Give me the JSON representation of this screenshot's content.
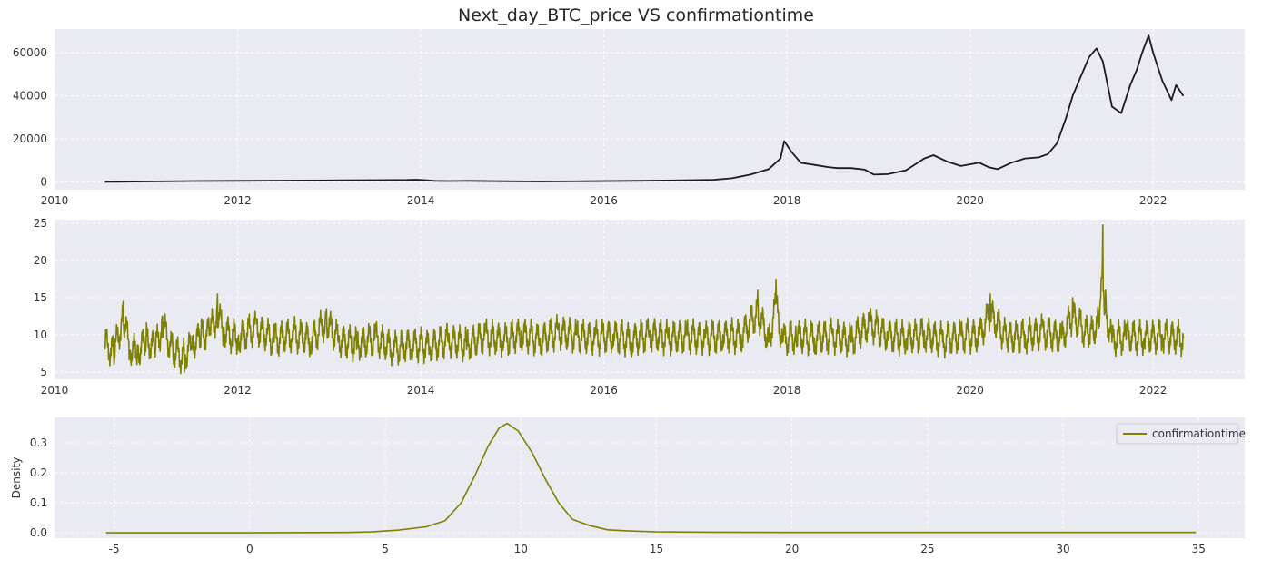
{
  "title": "Next_day_BTC_price VS confirmationtime",
  "colors": {
    "plot_bg": "#eaeaf2",
    "grid": "#ffffff",
    "price": "#1a1a1a",
    "confirmation": "#808000"
  },
  "chart_data": [
    {
      "type": "line",
      "name": "price-chart",
      "title": "Next_day_BTC_price VS confirmationtime",
      "xlabel": "",
      "ylabel": "",
      "xlim": [
        2010.0,
        2023.0
      ],
      "ylim": [
        -3500,
        71000
      ],
      "x_ticks": [
        2010,
        2012,
        2014,
        2016,
        2018,
        2020,
        2022
      ],
      "y_ticks": [
        0,
        20000,
        40000,
        60000
      ],
      "grid": true,
      "series": [
        {
          "name": "",
          "x": [
            2010.55,
            2011.0,
            2011.5,
            2012.0,
            2012.5,
            2013.0,
            2013.5,
            2013.85,
            2013.95,
            2014.05,
            2014.15,
            2014.3,
            2014.5,
            2014.9,
            2015.3,
            2015.8,
            2016.3,
            2016.8,
            2017.2,
            2017.4,
            2017.6,
            2017.8,
            2017.93,
            2017.97,
            2018.05,
            2018.15,
            2018.3,
            2018.45,
            2018.55,
            2018.7,
            2018.85,
            2018.95,
            2019.1,
            2019.3,
            2019.5,
            2019.6,
            2019.75,
            2019.9,
            2020.1,
            2020.2,
            2020.3,
            2020.45,
            2020.6,
            2020.75,
            2020.85,
            2020.95,
            2021.05,
            2021.12,
            2021.2,
            2021.3,
            2021.38,
            2021.45,
            2021.55,
            2021.65,
            2021.75,
            2021.82,
            2021.88,
            2021.95,
            2022.0,
            2022.1,
            2022.2,
            2022.25,
            2022.33
          ],
          "y": [
            100,
            300,
            500,
            600,
            700,
            800,
            900,
            1000,
            1150,
            900,
            600,
            500,
            600,
            400,
            300,
            400,
            600,
            800,
            1100,
            1800,
            3500,
            6000,
            11000,
            19000,
            14000,
            9000,
            8000,
            7000,
            6500,
            6500,
            5800,
            3500,
            3700,
            5500,
            11000,
            12500,
            9500,
            7500,
            9000,
            7000,
            6000,
            9000,
            11000,
            11500,
            13000,
            18000,
            30000,
            40000,
            48000,
            58000,
            62000,
            56000,
            35000,
            32000,
            45000,
            52000,
            60000,
            68000,
            60000,
            47000,
            38000,
            45000,
            40000
          ]
        }
      ]
    },
    {
      "type": "line",
      "name": "confirmation-time-chart",
      "xlabel": "",
      "ylabel": "",
      "xlim": [
        2010.0,
        2023.0
      ],
      "ylim": [
        4,
        25.5
      ],
      "x_ticks": [
        2010,
        2012,
        2014,
        2016,
        2018,
        2020,
        2022
      ],
      "y_ticks": [
        5,
        10,
        15,
        20,
        25
      ],
      "grid": true,
      "series": [
        {
          "name": "",
          "x": [
            2010.55,
            2010.65,
            2010.75,
            2010.82,
            2010.9,
            2011.0,
            2011.1,
            2011.18,
            2011.3,
            2011.42,
            2011.5,
            2011.6,
            2011.7,
            2011.78,
            2011.85,
            2012.0,
            2012.2,
            2012.4,
            2012.6,
            2012.8,
            2012.97,
            2013.1,
            2013.3,
            2013.5,
            2013.7,
            2013.9,
            2014.1,
            2014.3,
            2014.5,
            2014.7,
            2014.9,
            2015.1,
            2015.3,
            2015.5,
            2015.7,
            2015.9,
            2016.1,
            2016.3,
            2016.5,
            2016.7,
            2016.9,
            2017.1,
            2017.3,
            2017.5,
            2017.68,
            2017.8,
            2017.88,
            2017.95,
            2018.1,
            2018.3,
            2018.5,
            2018.7,
            2018.9,
            2019.1,
            2019.3,
            2019.5,
            2019.7,
            2019.9,
            2020.1,
            2020.22,
            2020.4,
            2020.6,
            2020.8,
            2021.0,
            2021.12,
            2021.3,
            2021.4,
            2021.45,
            2021.48,
            2021.55,
            2021.7,
            2021.9,
            2022.1,
            2022.33
          ],
          "y": [
            8,
            6,
            14.5,
            7,
            6,
            9,
            7,
            12.5,
            6,
            5,
            8,
            10,
            11,
            15.5,
            11,
            9.5,
            12,
            9,
            10.5,
            9,
            13.5,
            9,
            8,
            9.5,
            7,
            8,
            7.5,
            9,
            8,
            10,
            9,
            10.5,
            9,
            11,
            10,
            9.5,
            10,
            9,
            10.5,
            9.5,
            10,
            9.5,
            10,
            10,
            16,
            9,
            17.5,
            9,
            10,
            9.5,
            10,
            9,
            13,
            10,
            9.5,
            10.5,
            9,
            10,
            10,
            15.5,
            9.5,
            10,
            11,
            9.5,
            15,
            10,
            13,
            24.8,
            16,
            9,
            10,
            9.5,
            10,
            9.5
          ]
        }
      ]
    },
    {
      "type": "line",
      "name": "density-chart",
      "xlabel": "",
      "ylabel": "Density",
      "xlim": [
        -7.2,
        36.7
      ],
      "ylim": [
        -0.018,
        0.385
      ],
      "x_ticks": [
        -5,
        0,
        5,
        10,
        15,
        20,
        25,
        30,
        35
      ],
      "y_ticks": [
        0.0,
        0.1,
        0.2,
        0.3
      ],
      "grid": true,
      "legend": "top-right",
      "series": [
        {
          "name": "confirmationtime",
          "x": [
            -5.3,
            0,
            3.5,
            4.5,
            5.5,
            6.5,
            7.2,
            7.8,
            8.3,
            8.8,
            9.2,
            9.5,
            9.9,
            10.4,
            10.9,
            11.4,
            11.9,
            12.5,
            13.2,
            14,
            15,
            17,
            20,
            25,
            30,
            34.9
          ],
          "y": [
            0,
            0,
            0.001,
            0.003,
            0.009,
            0.02,
            0.04,
            0.1,
            0.19,
            0.29,
            0.35,
            0.365,
            0.34,
            0.27,
            0.18,
            0.1,
            0.045,
            0.025,
            0.01,
            0.006,
            0.003,
            0.002,
            0.001,
            0.001,
            0.001,
            0.001
          ]
        }
      ]
    }
  ]
}
